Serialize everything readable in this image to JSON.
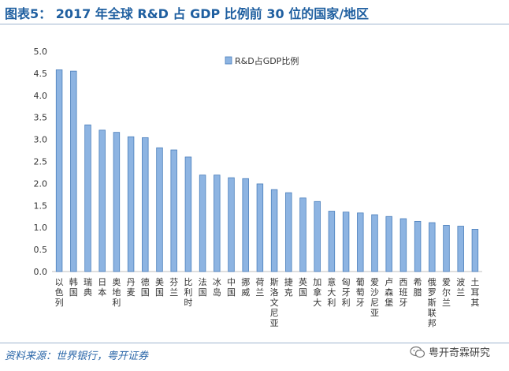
{
  "header": {
    "title": "图表5： 2017 年全球 R&D 占 GDP 比例前 30 位的国家/地区"
  },
  "footer": {
    "source": "资料来源：世界银行，粤开证券",
    "watermark": "粤开奇霖研究"
  },
  "colors": {
    "bar_fill": "#8db4e2",
    "bar_stroke": "#4a7ebb",
    "title": "#1f5fa0",
    "rule": "#9fb6cf"
  },
  "chart_data": {
    "type": "bar",
    "title": "",
    "xlabel": "",
    "ylabel": "",
    "ylim": [
      0,
      5.0
    ],
    "yticks": [
      "0.0",
      "0.5",
      "1.0",
      "1.5",
      "2.0",
      "2.5",
      "3.0",
      "3.5",
      "4.0",
      "4.5",
      "5.0"
    ],
    "legend": "top-center",
    "grid": false,
    "categories": [
      "以色列",
      "韩国",
      "瑞典",
      "日本",
      "奥地利",
      "丹麦",
      "德国",
      "美国",
      "芬兰",
      "比利时",
      "法国",
      "冰岛",
      "中国",
      "挪威",
      "荷兰",
      "斯洛文尼亚",
      "捷克",
      "英国",
      "加拿大",
      "意大利",
      "匈牙利",
      "葡萄牙",
      "爱沙尼亚",
      "卢森堡",
      "西班牙",
      "希腊",
      "俄罗斯联邦",
      "爱尔兰",
      "波兰",
      "土耳其"
    ],
    "series": [
      {
        "name": "R&D占GDP比例",
        "values": [
          4.58,
          4.55,
          3.33,
          3.21,
          3.16,
          3.06,
          3.04,
          2.81,
          2.76,
          2.6,
          2.19,
          2.19,
          2.13,
          2.11,
          1.99,
          1.86,
          1.79,
          1.67,
          1.59,
          1.37,
          1.35,
          1.33,
          1.29,
          1.25,
          1.2,
          1.14,
          1.11,
          1.05,
          1.03,
          0.96
        ]
      }
    ]
  }
}
